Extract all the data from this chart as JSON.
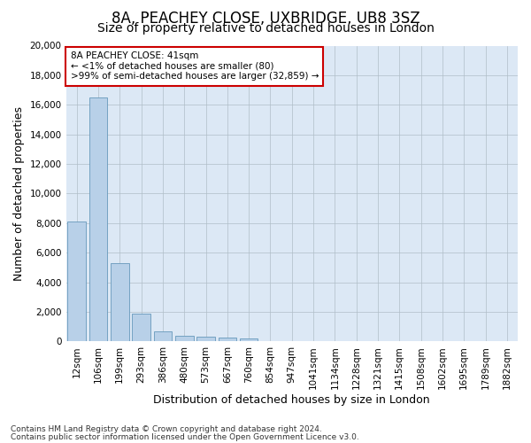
{
  "title": "8A, PEACHEY CLOSE, UXBRIDGE, UB8 3SZ",
  "subtitle": "Size of property relative to detached houses in London",
  "xlabel": "Distribution of detached houses by size in London",
  "ylabel": "Number of detached properties",
  "categories": [
    "12sqm",
    "106sqm",
    "199sqm",
    "293sqm",
    "386sqm",
    "480sqm",
    "573sqm",
    "667sqm",
    "760sqm",
    "854sqm",
    "947sqm",
    "1041sqm",
    "1134sqm",
    "1228sqm",
    "1321sqm",
    "1415sqm",
    "1508sqm",
    "1602sqm",
    "1695sqm",
    "1789sqm",
    "1882sqm"
  ],
  "values": [
    8100,
    16500,
    5300,
    1850,
    700,
    380,
    290,
    230,
    200,
    0,
    0,
    0,
    0,
    0,
    0,
    0,
    0,
    0,
    0,
    0,
    0
  ],
  "bar_color": "#b8d0e8",
  "bar_edge_color": "#6699bb",
  "ylim": [
    0,
    20000
  ],
  "yticks": [
    0,
    2000,
    4000,
    6000,
    8000,
    10000,
    12000,
    14000,
    16000,
    18000,
    20000
  ],
  "annotation_text": "8A PEACHEY CLOSE: 41sqm\n← <1% of detached houses are smaller (80)\n>99% of semi-detached houses are larger (32,859) →",
  "annotation_box_color": "#ffffff",
  "annotation_box_edge": "#cc0000",
  "footer1": "Contains HM Land Registry data © Crown copyright and database right 2024.",
  "footer2": "Contains public sector information licensed under the Open Government Licence v3.0.",
  "bg_color": "#ffffff",
  "plot_bg_color": "#dce8f5",
  "grid_color": "#b0bec8",
  "title_fontsize": 12,
  "subtitle_fontsize": 10,
  "axis_label_fontsize": 9,
  "tick_fontsize": 7.5,
  "footer_fontsize": 6.5
}
